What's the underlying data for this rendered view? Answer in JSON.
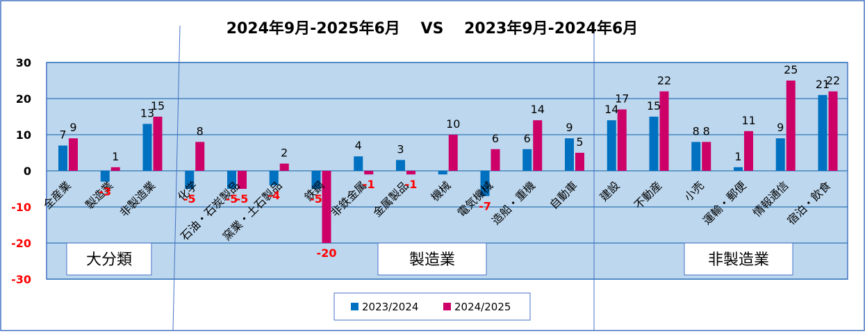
{
  "chart_data": {
    "type": "bar",
    "title": "2024年9月-2025年6月　 VS　 2023年9月-2024年6月",
    "categories": [
      "全産業",
      "製造業",
      "非製造業",
      "化学",
      "石油・石炭製品",
      "窯業・土石製品",
      "鉄鋼",
      "非鉄金属",
      "金属製品",
      "機械",
      "電気機械",
      "造船・重機",
      "自動車",
      "建設",
      "不動産",
      "小売",
      "運輸・郵便",
      "情報通信",
      "宿泊・飲食"
    ],
    "series": [
      {
        "name": "2023/2024",
        "color": "#0070C0",
        "values": [
          7,
          -3,
          13,
          -5,
          -5,
          -4,
          -5,
          4,
          3,
          -1,
          -7,
          6,
          9,
          14,
          15,
          8,
          1,
          9,
          21
        ]
      },
      {
        "name": "2024/2025",
        "color": "#CC0066",
        "values": [
          9,
          1,
          15,
          8,
          -5,
          2,
          -20,
          -1,
          -1,
          10,
          6,
          14,
          5,
          17,
          22,
          8,
          11,
          25,
          22
        ]
      }
    ],
    "data_labels": [
      {
        "text": "7",
        "color": "#000000",
        "category": 0
      },
      {
        "text": "9",
        "color": "#000000",
        "category": 0
      },
      {
        "text": "1",
        "color": "#000000",
        "category": 1
      },
      {
        "text": "-3",
        "color": "#FF0000",
        "category": 1
      },
      {
        "text": "13",
        "color": "#000000",
        "category": 2
      },
      {
        "text": "15",
        "color": "#000000",
        "category": 2
      },
      {
        "text": "8",
        "color": "#000000",
        "category": 3
      },
      {
        "text": "-5",
        "color": "#FF0000",
        "category": 3
      },
      {
        "text": "-5",
        "color": "#FF0000",
        "category": 4
      },
      {
        "text": "-5",
        "color": "#FF0000",
        "category": 4
      },
      {
        "text": "2",
        "color": "#000000",
        "category": 5
      },
      {
        "text": "-4",
        "color": "#FF0000",
        "category": 5
      },
      {
        "text": "-5",
        "color": "#FF0000",
        "category": 6
      },
      {
        "text": "-20",
        "color": "#FF0000",
        "category": 6
      },
      {
        "text": "4",
        "color": "#000000",
        "category": 7
      },
      {
        "text": "-1",
        "color": "#FF0000",
        "category": 7
      },
      {
        "text": "3",
        "color": "#000000",
        "category": 8
      },
      {
        "text": "-1",
        "color": "#FF0000",
        "category": 8
      },
      {
        "text": "10",
        "color": "#000000",
        "category": 9
      },
      {
        "text": "6",
        "color": "#000000",
        "category": 10
      },
      {
        "text": "-7",
        "color": "#FF0000",
        "category": 10
      },
      {
        "text": "6",
        "color": "#000000",
        "category": 11
      },
      {
        "text": "14",
        "color": "#000000",
        "category": 11
      },
      {
        "text": "9",
        "color": "#000000",
        "category": 12
      },
      {
        "text": "5",
        "color": "#000000",
        "category": 12
      },
      {
        "text": "14",
        "color": "#000000",
        "category": 13
      },
      {
        "text": "17",
        "color": "#000000",
        "category": 13
      },
      {
        "text": "15",
        "color": "#000000",
        "category": 14
      },
      {
        "text": "22",
        "color": "#000000",
        "category": 14
      },
      {
        "text": "8",
        "color": "#000000",
        "category": 15
      },
      {
        "text": "8",
        "color": "#000000",
        "category": 15
      },
      {
        "text": "1",
        "color": "#000000",
        "category": 16
      },
      {
        "text": "11",
        "color": "#000000",
        "category": 16
      },
      {
        "text": "9",
        "color": "#000000",
        "category": 17
      },
      {
        "text": "25",
        "color": "#000000",
        "category": 17
      },
      {
        "text": "21",
        "color": "#000000",
        "category": 18
      },
      {
        "text": "22",
        "color": "#000000",
        "category": 18
      }
    ],
    "group_labels": [
      "大分類",
      "製造業",
      "非製造業"
    ],
    "ylim": [
      -30,
      30
    ],
    "yticks": [
      30,
      20,
      10,
      0,
      -10,
      -20,
      -30
    ],
    "ytick_colors": {
      "positive": "#000000",
      "negative": "#FF0000"
    },
    "grid": true,
    "legend": "bottom-center",
    "plot_background": "#BDD7EE"
  }
}
